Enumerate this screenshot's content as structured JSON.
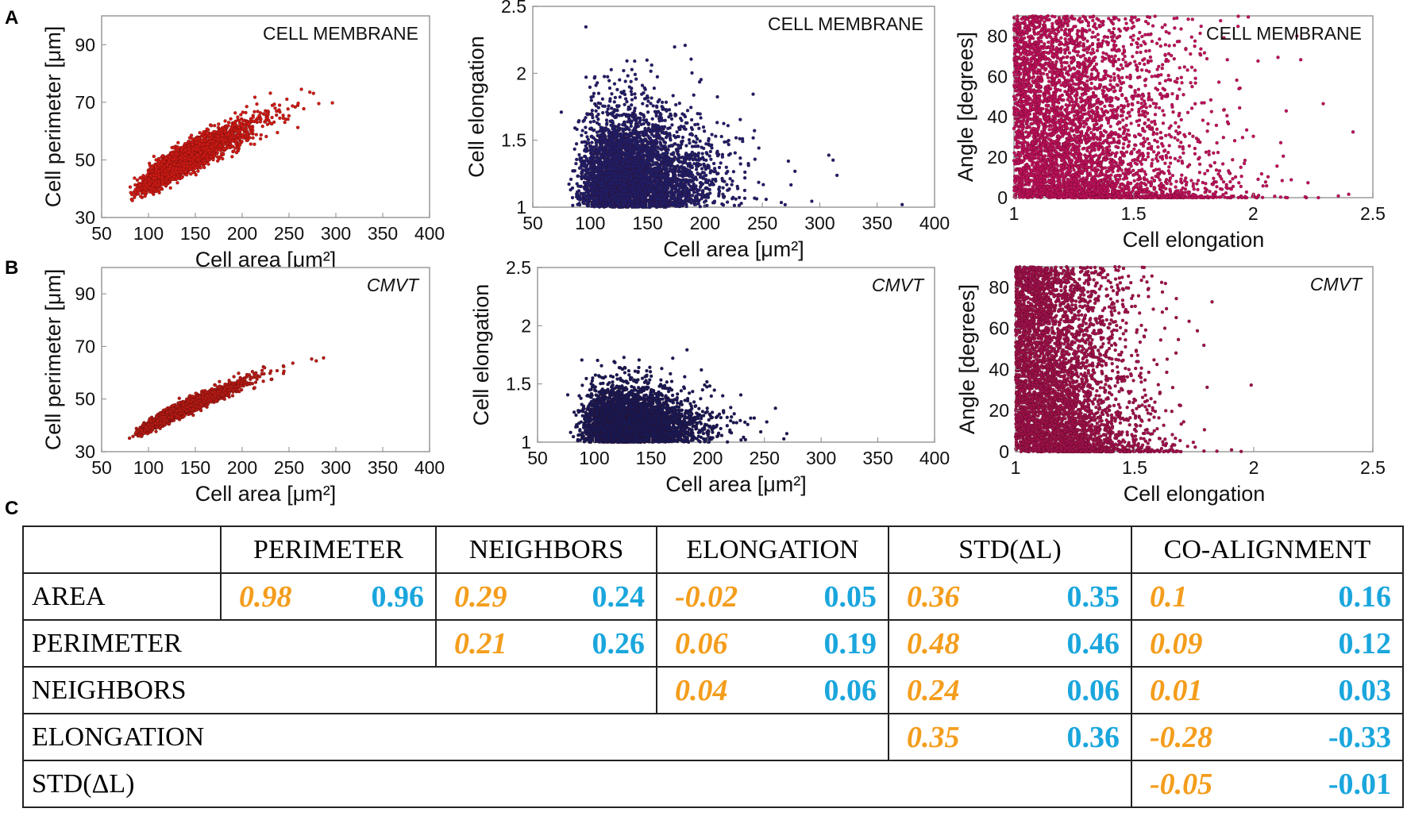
{
  "panel_labels": [
    "A",
    "B",
    "C"
  ],
  "chart_data": [
    {
      "type": "scatter",
      "panel": "A",
      "annotation": "CELL MEMBRANE",
      "annotation_italic": false,
      "xlabel": "Cell area [μm²]",
      "ylabel": "Cell perimeter [μm]",
      "xlim": [
        50,
        400
      ],
      "ylim": [
        30,
        100
      ],
      "xticks": [
        50,
        100,
        150,
        200,
        250,
        300,
        350,
        400
      ],
      "yticks": [
        30,
        50,
        70,
        90
      ],
      "color": "#d11a14",
      "distribution": {
        "kind": "area-perimeter",
        "n": 4000,
        "area_median": 135,
        "area_spread": 0.33,
        "k": 4.25,
        "noise": 0.045,
        "seed": 11
      }
    },
    {
      "type": "scatter",
      "panel": "A",
      "annotation": "CELL MEMBRANE",
      "annotation_italic": false,
      "xlabel": "Cell area [μm²]",
      "ylabel": "Cell elongation",
      "xlim": [
        50,
        400
      ],
      "ylim": [
        1,
        2.5
      ],
      "xticks": [
        50,
        100,
        150,
        200,
        250,
        300,
        350,
        400
      ],
      "yticks": [
        1,
        1.5,
        2,
        2.5
      ],
      "color": "#1c1f6e",
      "distribution": {
        "kind": "area-elongation",
        "n": 4500,
        "area_median": 135,
        "area_spread": 0.33,
        "elong_scale": 0.28,
        "seed": 12
      }
    },
    {
      "type": "scatter",
      "panel": "A",
      "annotation": "CELL MEMBRANE",
      "annotation_italic": false,
      "xlabel": "Cell elongation",
      "ylabel": "Angle [degrees]",
      "xlim": [
        1,
        2.5
      ],
      "ylim": [
        0,
        90
      ],
      "xticks": [
        1,
        1.5,
        2,
        2.5
      ],
      "yticks": [
        0,
        20,
        40,
        60,
        80
      ],
      "color": "#c0105e",
      "distribution": {
        "kind": "elongation-angle",
        "n": 4500,
        "elong_scale": 0.3,
        "decay": 2.5,
        "seed": 13
      }
    },
    {
      "type": "scatter",
      "panel": "B",
      "annotation": "CMVT",
      "annotation_italic": true,
      "xlabel": "Cell area [μm²]",
      "ylabel": "Cell perimeter [μm]",
      "xlim": [
        50,
        400
      ],
      "ylim": [
        30,
        100
      ],
      "xticks": [
        50,
        100,
        150,
        200,
        250,
        300,
        350,
        400
      ],
      "yticks": [
        30,
        50,
        70,
        90
      ],
      "color": "#b81a14",
      "distribution": {
        "kind": "area-perimeter",
        "n": 4000,
        "area_median": 130,
        "area_spread": 0.3,
        "k": 3.95,
        "noise": 0.025,
        "seed": 21
      }
    },
    {
      "type": "scatter",
      "panel": "B",
      "annotation": "CMVT",
      "annotation_italic": true,
      "xlabel": "Cell area [μm²]",
      "ylabel": "Cell elongation",
      "xlim": [
        50,
        400
      ],
      "ylim": [
        1,
        2.5
      ],
      "xticks": [
        50,
        100,
        150,
        200,
        250,
        300,
        350,
        400
      ],
      "yticks": [
        1,
        1.5,
        2,
        2.5
      ],
      "color": "#141a5a",
      "distribution": {
        "kind": "area-elongation",
        "n": 4500,
        "area_median": 130,
        "area_spread": 0.3,
        "elong_scale": 0.18,
        "seed": 22
      }
    },
    {
      "type": "scatter",
      "panel": "B",
      "annotation": "CMVT",
      "annotation_italic": true,
      "xlabel": "Cell elongation",
      "ylabel": "Angle [degrees]",
      "xlim": [
        1,
        2.5
      ],
      "ylim": [
        0,
        90
      ],
      "xticks": [
        1,
        1.5,
        2,
        2.5
      ],
      "yticks": [
        0,
        20,
        40,
        60,
        80
      ],
      "color": "#a0104e",
      "distribution": {
        "kind": "elongation-angle",
        "n": 4500,
        "elong_scale": 0.19,
        "decay": 3,
        "seed": 23
      }
    }
  ],
  "table": {
    "panel": "C",
    "colors": {
      "cell_membrane": "#f49d1c",
      "cmvt": "#1aa6dd"
    },
    "columns": [
      "PERIMETER",
      "NEIGHBORS",
      "ELONGATION",
      "STD(ΔL)",
      "CO-ALIGNMENT"
    ],
    "rows": [
      {
        "label": "AREA",
        "values": [
          [
            "0.98",
            "0.96"
          ],
          [
            "0.29",
            "0.24"
          ],
          [
            "-0.02",
            "0.05"
          ],
          [
            "0.36",
            "0.35"
          ],
          [
            "0.1",
            "0.16"
          ]
        ]
      },
      {
        "label": "PERIMETER",
        "values": [
          [
            "0.21",
            "0.26"
          ],
          [
            "0.06",
            "0.19"
          ],
          [
            "0.48",
            "0.46"
          ],
          [
            "0.09",
            "0.12"
          ]
        ]
      },
      {
        "label": "NEIGHBORS",
        "values": [
          [
            "0.04",
            "0.06"
          ],
          [
            "0.24",
            "0.06"
          ],
          [
            "0.01",
            "0.03"
          ]
        ]
      },
      {
        "label": "ELONGATION",
        "values": [
          [
            "0.35",
            "0.36"
          ],
          [
            "-0.28",
            "-0.33"
          ]
        ]
      },
      {
        "label": "STD(ΔL)",
        "values": [
          [
            "-0.05",
            "-0.01"
          ]
        ]
      }
    ]
  }
}
